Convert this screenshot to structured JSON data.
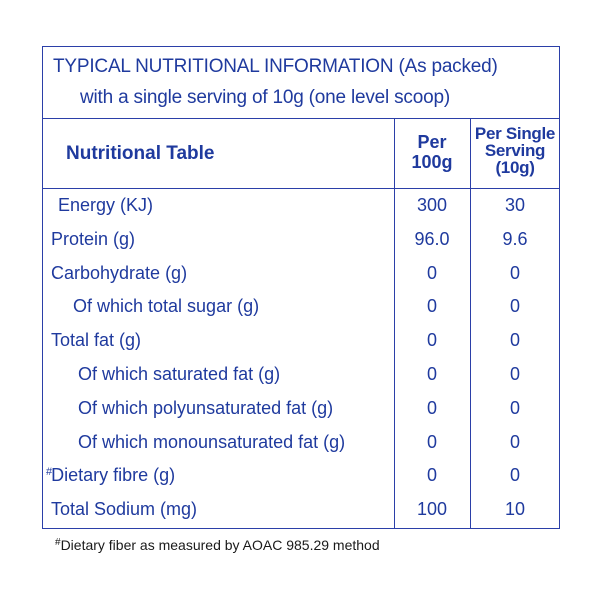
{
  "title": {
    "line1": "TYPICAL NUTRITIONAL INFORMATION (As packed)",
    "line2": "with a single serving of 10g (one level scoop)"
  },
  "header": {
    "label": "Nutritional Table",
    "per_100g_line1": "Per",
    "per_100g_line2": "100g",
    "per_serving_line1": "Per Single",
    "per_serving_line2": "Serving",
    "per_serving_line3": "(10g)"
  },
  "rows": [
    {
      "name": "Energy (KJ)",
      "per_100g": "300",
      "per_serving": "30"
    },
    {
      "name": "Protein (g)",
      "per_100g": "96.0",
      "per_serving": "9.6"
    },
    {
      "name": "Carbohydrate (g)",
      "per_100g": "0",
      "per_serving": "0"
    },
    {
      "name": "Of which total sugar (g)",
      "per_100g": "0",
      "per_serving": "0"
    },
    {
      "name": "Total fat (g)",
      "per_100g": "0",
      "per_serving": "0"
    },
    {
      "name": "Of which saturated fat (g)",
      "per_100g": "0",
      "per_serving": "0"
    },
    {
      "name": "Of which polyunsaturated fat (g)",
      "per_100g": "0",
      "per_serving": "0"
    },
    {
      "name": "Of which monounsaturated fat (g)",
      "per_100g": "0",
      "per_serving": "0"
    },
    {
      "name": "Dietary fibre (g)",
      "name_marker": "#",
      "per_100g": "0",
      "per_serving": "0"
    },
    {
      "name": "Total Sodium (mg)",
      "per_100g": "100",
      "per_serving": "10"
    }
  ],
  "footnote": {
    "marker": "#",
    "text": "Dietary fiber as measured by AOAC 985.29 method"
  },
  "colors": {
    "text": "#1f3a9e",
    "border": "#2b3fa8"
  }
}
